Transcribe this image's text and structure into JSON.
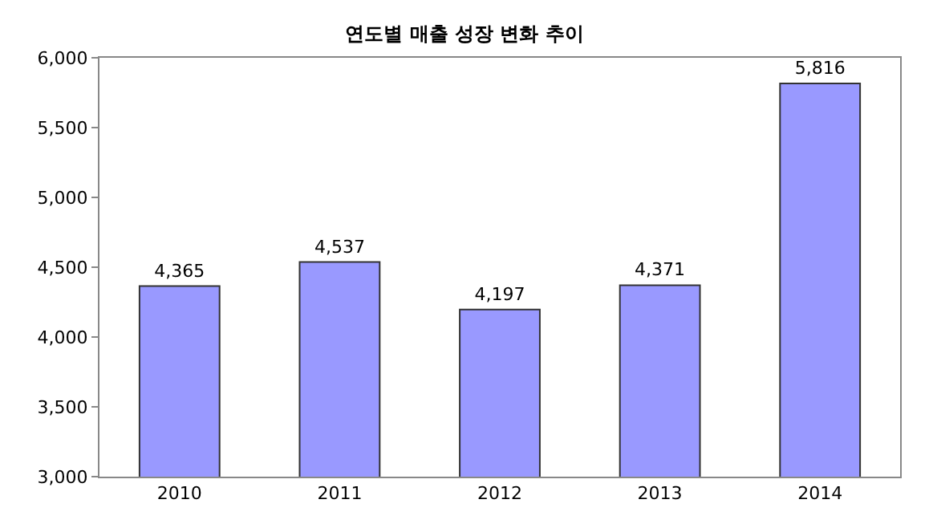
{
  "chart_data": {
    "type": "bar",
    "title": "연도별 매출 성장 변화 추이",
    "categories": [
      "2010",
      "2011",
      "2012",
      "2013",
      "2014"
    ],
    "values": [
      4365,
      4537,
      4197,
      4371,
      5816
    ],
    "value_labels": [
      "4,365",
      "4,537",
      "4,197",
      "4,371",
      "5,816"
    ],
    "color": "#9999ff",
    "ylim": [
      3000,
      6000
    ],
    "yticks": [
      {
        "value": 3000,
        "label": "3,000"
      },
      {
        "value": 3500,
        "label": "3,500"
      },
      {
        "value": 4000,
        "label": "4,000"
      },
      {
        "value": 4500,
        "label": "4,500"
      },
      {
        "value": 5000,
        "label": "5,000"
      },
      {
        "value": 5500,
        "label": "5,500"
      },
      {
        "value": 6000,
        "label": "6,000"
      }
    ],
    "grid": false,
    "legend": false
  }
}
